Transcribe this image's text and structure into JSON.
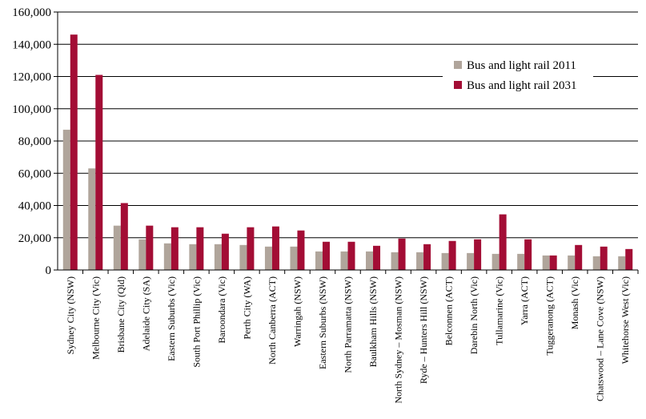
{
  "chart_data": {
    "type": "bar",
    "title": "",
    "xlabel": "",
    "ylabel": "",
    "ylim": [
      0,
      160000
    ],
    "yticks": [
      "0",
      "20,000",
      "40,000",
      "60,000",
      "80,000",
      "100,000",
      "120,000",
      "140,000",
      "160,000"
    ],
    "grid": true,
    "legend_position": "top-right",
    "categories": [
      "Sydney City (NSW)",
      "Melbourne City (Vic)",
      "Brisbane City (Qld)",
      "Adelaide City (SA)",
      "Eastern Suburbs (Vic)",
      "South Port Phillip (Vic)",
      "Baroondara (Vic)",
      "Perth City (WA)",
      "North Canberra (ACT)",
      "Warringah (NSW)",
      "Eastern Suburbs (NSW)",
      "North Parramatta (NSW)",
      "Baulkham Hills (NSW)",
      "North Sydney – Mosman (NSW)",
      "Ryde – Hunters Hill (NSW)",
      "Belconnen (ACT)",
      "Darebin North (Vic)",
      "Tullamarine (Vic)",
      "Yarra (ACT)",
      "Tuggeranong (ACT)",
      "Monash (Vic)",
      "Chatswood – Lane Cove (NSW)",
      "Whitehorse West (Vic)"
    ],
    "series": [
      {
        "name": "Bus and light rail 2011",
        "color": "#b0a59b",
        "values": [
          87000,
          63000,
          27500,
          19000,
          16500,
          16000,
          16000,
          15500,
          14500,
          14500,
          11500,
          11500,
          11500,
          11000,
          11000,
          10500,
          10500,
          10000,
          10000,
          9000,
          9000,
          8500,
          8500
        ]
      },
      {
        "name": "Bus and light rail 2031",
        "color": "#a30d35",
        "values": [
          146000,
          121000,
          41500,
          27500,
          26500,
          26500,
          22500,
          26500,
          27000,
          24500,
          17500,
          17500,
          15000,
          19500,
          16000,
          18000,
          19000,
          34500,
          19000,
          9000,
          15500,
          14500,
          13000
        ]
      }
    ]
  }
}
